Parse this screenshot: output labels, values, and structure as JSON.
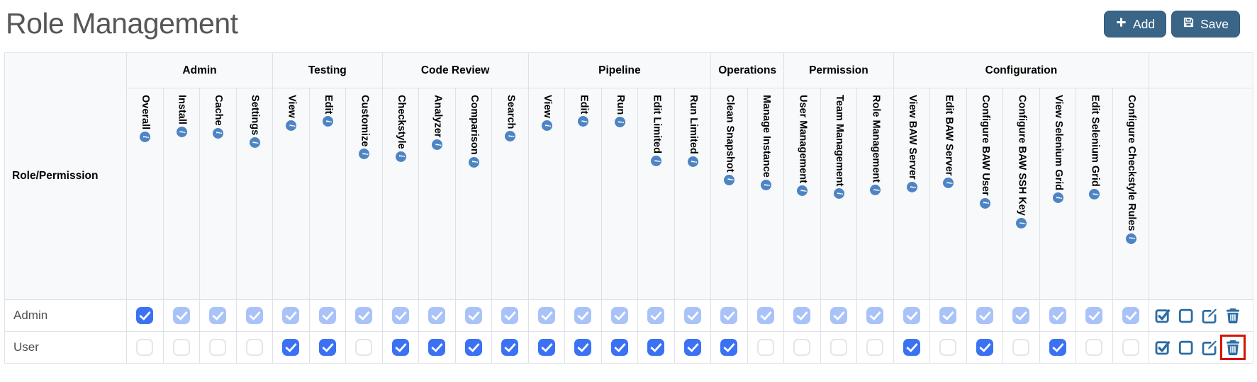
{
  "page": {
    "title": "Role Management"
  },
  "toolbar": {
    "add_label": "Add",
    "save_label": "Save",
    "button_color": "#3a6587"
  },
  "colors": {
    "checkbox_checked": "#3b71f3",
    "checkbox_checked_disabled": "#a9c3f8",
    "checkbox_unchecked_border": "#e2e6ec",
    "info_badge": "#4d84c4",
    "action_icon": "#2d6da3",
    "highlight_box": "#d41400",
    "header_bg": "#f8f9fa",
    "table_border": "#dee2e6"
  },
  "icons": {
    "info_glyph": "i"
  },
  "table": {
    "corner_label": "Role/Permission",
    "groups": [
      {
        "label": "Admin",
        "span": 4
      },
      {
        "label": "Testing",
        "span": 3
      },
      {
        "label": "Code Review",
        "span": 4
      },
      {
        "label": "Pipeline",
        "span": 5
      },
      {
        "label": "Operations",
        "span": 2
      },
      {
        "label": "Permission",
        "span": 3
      },
      {
        "label": "Configuration",
        "span": 7
      }
    ],
    "columns": [
      {
        "label": "Overall",
        "group": "Admin"
      },
      {
        "label": "Install",
        "group": "Admin"
      },
      {
        "label": "Cache",
        "group": "Admin"
      },
      {
        "label": "Settings",
        "group": "Admin"
      },
      {
        "label": "View",
        "group": "Testing"
      },
      {
        "label": "Edit",
        "group": "Testing"
      },
      {
        "label": "Customize",
        "group": "Testing"
      },
      {
        "label": "Checkstyle",
        "group": "Code Review"
      },
      {
        "label": "Analyzer",
        "group": "Code Review"
      },
      {
        "label": "Comparison",
        "group": "Code Review"
      },
      {
        "label": "Search",
        "group": "Code Review"
      },
      {
        "label": "View",
        "group": "Pipeline"
      },
      {
        "label": "Edit",
        "group": "Pipeline"
      },
      {
        "label": "Run",
        "group": "Pipeline"
      },
      {
        "label": "Edit Limited",
        "group": "Pipeline"
      },
      {
        "label": "Run Limited",
        "group": "Pipeline"
      },
      {
        "label": "Clean Snapshot",
        "group": "Operations"
      },
      {
        "label": "Manage Instance",
        "group": "Operations"
      },
      {
        "label": "User Management",
        "group": "Permission"
      },
      {
        "label": "Team Management",
        "group": "Permission"
      },
      {
        "label": "Role Management",
        "group": "Permission"
      },
      {
        "label": "View BAW Server",
        "group": "Configuration"
      },
      {
        "label": "Edit BAW Server",
        "group": "Configuration"
      },
      {
        "label": "Configure BAW User",
        "group": "Configuration"
      },
      {
        "label": "Configure BAW SSH Key",
        "group": "Configuration"
      },
      {
        "label": "View Selenium Grid",
        "group": "Configuration"
      },
      {
        "label": "Edit Selenium Grid",
        "group": "Configuration"
      },
      {
        "label": "Configure Checkstyle Rules",
        "group": "Configuration"
      }
    ],
    "rows": [
      {
        "name": "Admin",
        "states": [
          "on",
          "on-dis",
          "on-dis",
          "on-dis",
          "on-dis",
          "on-dis",
          "on-dis",
          "on-dis",
          "on-dis",
          "on-dis",
          "on-dis",
          "on-dis",
          "on-dis",
          "on-dis",
          "on-dis",
          "on-dis",
          "on-dis",
          "on-dis",
          "on-dis",
          "on-dis",
          "on-dis",
          "on-dis",
          "on-dis",
          "on-dis",
          "on-dis",
          "on-dis",
          "on-dis",
          "on-dis"
        ]
      },
      {
        "name": "User",
        "states": [
          "off",
          "off",
          "off",
          "off",
          "on",
          "on",
          "off",
          "on",
          "on",
          "on",
          "on",
          "on",
          "on",
          "on",
          "on",
          "on",
          "on",
          "off",
          "off",
          "off",
          "off",
          "on",
          "off",
          "on",
          "off",
          "on",
          "off",
          "off"
        ]
      }
    ],
    "row_actions": [
      "check-all",
      "uncheck-all",
      "edit",
      "delete"
    ],
    "highlight": {
      "row": "User",
      "action": "delete"
    }
  }
}
